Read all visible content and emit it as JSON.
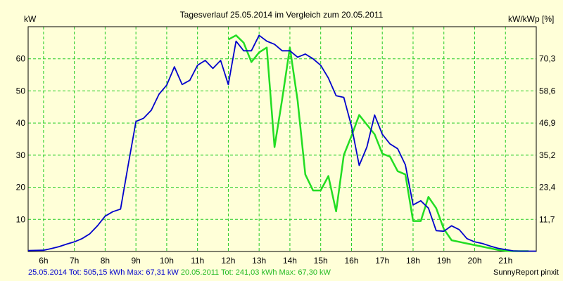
{
  "chart_data": {
    "type": "line",
    "title": "Tagesverlauf 25.05.2014 im Vergleich zum 20.05.2011",
    "ylabel_left": "kW",
    "ylabel_right": "kW/kWp [%]",
    "x_ticks": [
      "6h",
      "7h",
      "8h",
      "9h",
      "10h",
      "11h",
      "12h",
      "13h",
      "14h",
      "15h",
      "16h",
      "17h",
      "18h",
      "19h",
      "20h",
      "21h"
    ],
    "x_range_hours": [
      5.5,
      22.0
    ],
    "y_left_range": [
      0,
      70
    ],
    "y_left_ticks": [
      10,
      20,
      30,
      40,
      50,
      60
    ],
    "y_right_ticks": [
      "11,7",
      "23,4",
      "35,2",
      "46,9",
      "58,6",
      "70,3"
    ],
    "grid": true,
    "series": [
      {
        "name": "25.05.2014",
        "color": "#0000cc",
        "x": [
          5.5,
          6.0,
          6.25,
          6.5,
          6.75,
          7.0,
          7.25,
          7.5,
          7.75,
          8.0,
          8.25,
          8.5,
          8.75,
          9.0,
          9.25,
          9.5,
          9.75,
          10.0,
          10.25,
          10.5,
          10.75,
          11.0,
          11.25,
          11.5,
          11.75,
          12.0,
          12.25,
          12.5,
          12.75,
          13.0,
          13.25,
          13.5,
          13.75,
          14.0,
          14.25,
          14.5,
          14.75,
          15.0,
          15.25,
          15.5,
          15.75,
          16.0,
          16.25,
          16.5,
          16.75,
          17.0,
          17.25,
          17.5,
          17.75,
          18.0,
          18.25,
          18.5,
          18.75,
          19.0,
          19.25,
          19.5,
          19.75,
          20.0,
          20.25,
          20.5,
          20.75,
          21.0,
          21.25,
          21.5,
          21.75,
          22.0
        ],
        "values": [
          0.3,
          0.4,
          0.9,
          1.5,
          2.3,
          3.0,
          4.0,
          5.5,
          8.0,
          11.0,
          12.4,
          13.2,
          27.0,
          40.5,
          41.5,
          44.0,
          49.0,
          51.8,
          57.5,
          52.0,
          53.3,
          58.0,
          59.5,
          57.0,
          59.5,
          52.0,
          65.5,
          62.5,
          62.5,
          67.3,
          65.5,
          64.5,
          62.5,
          62.5,
          60.5,
          61.5,
          60.0,
          58.0,
          54.0,
          48.5,
          48.0,
          39.0,
          26.8,
          32.5,
          42.5,
          36.5,
          33.5,
          32.0,
          27.0,
          14.5,
          15.8,
          13.5,
          6.5,
          6.3,
          8.0,
          6.8,
          4.0,
          3.0,
          2.5,
          1.7,
          1.0,
          0.6,
          0.2,
          0.1,
          0.1,
          0.1
        ]
      },
      {
        "name": "20.05.2011",
        "color": "#22dd22",
        "x": [
          12.0,
          12.25,
          12.5,
          12.75,
          13.0,
          13.25,
          13.5,
          13.75,
          14.0,
          14.25,
          14.5,
          14.75,
          15.0,
          15.25,
          15.5,
          15.75,
          16.0,
          16.25,
          16.5,
          16.75,
          17.0,
          17.25,
          17.5,
          17.75,
          18.0,
          18.25,
          18.5,
          18.75,
          19.0,
          19.25,
          19.5,
          19.75,
          20.0,
          20.25,
          20.5,
          20.75,
          21.0,
          21.25,
          21.5,
          21.75
        ],
        "values": [
          66.0,
          67.3,
          65.0,
          59.0,
          62.0,
          63.5,
          32.5,
          47.5,
          63.5,
          47.0,
          24.0,
          19.0,
          19.0,
          23.5,
          12.5,
          30.0,
          36.0,
          42.5,
          39.5,
          36.5,
          30.5,
          29.5,
          25.0,
          24.0,
          9.5,
          9.5,
          17.0,
          13.5,
          7.0,
          3.5,
          3.0,
          2.5,
          2.0,
          1.5,
          1.0,
          0.5,
          0.2,
          0.1,
          0.1,
          0.1
        ]
      }
    ]
  },
  "footer": {
    "s1_label": "25.05.2014 Tot: 505,15 kWh Max: 67,31 kW",
    "s2_label": "20.05.2011 Tot: 241,03 kWh Max: 67,30 kW",
    "credit": "SunnyReport pinxit"
  },
  "colors": {
    "background": "#ffffd8",
    "grid": "#22cc22"
  }
}
